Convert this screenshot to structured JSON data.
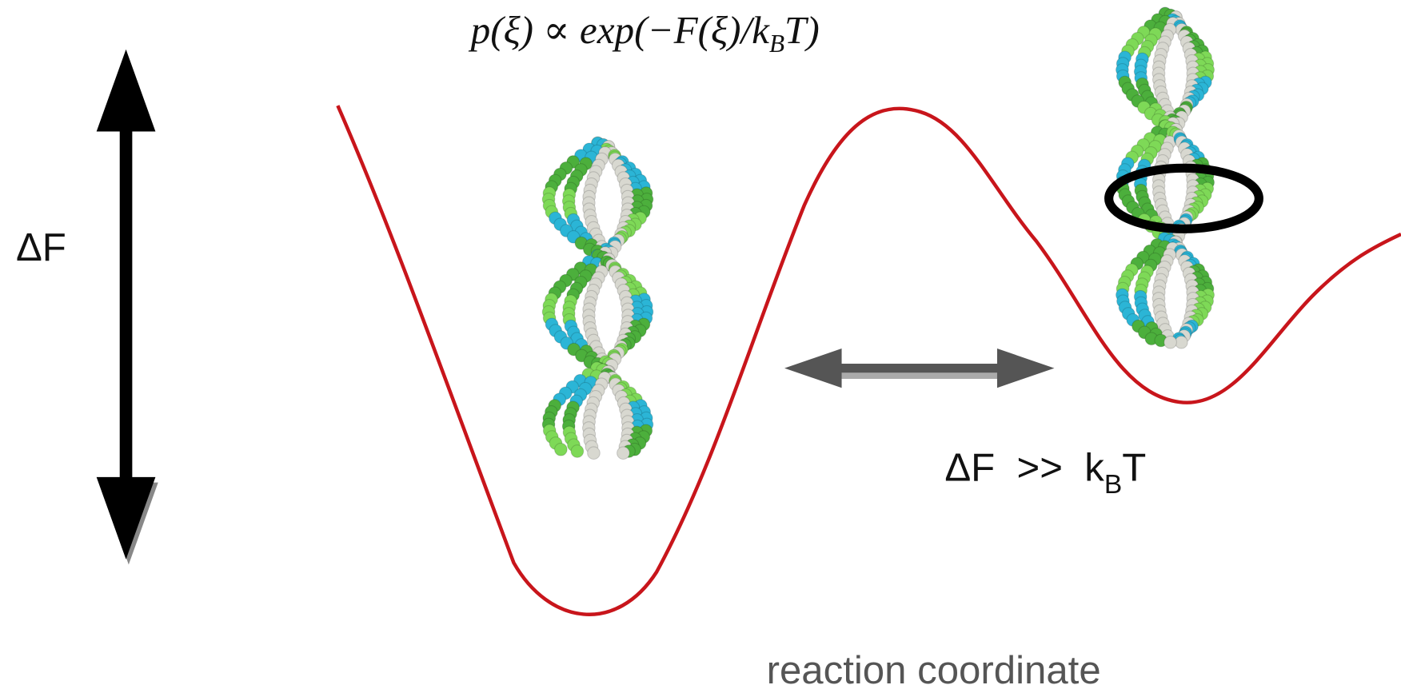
{
  "formula": {
    "main": "p(ξ) ∝ exp(−F(ξ)/k",
    "subscript": "B",
    "tail": "T)"
  },
  "barrier_label": "ΔF",
  "condition": {
    "main": "ΔF  >>  k",
    "subscript": "B",
    "tail": "T"
  },
  "x_axis_label": "reaction coordinate"
}
